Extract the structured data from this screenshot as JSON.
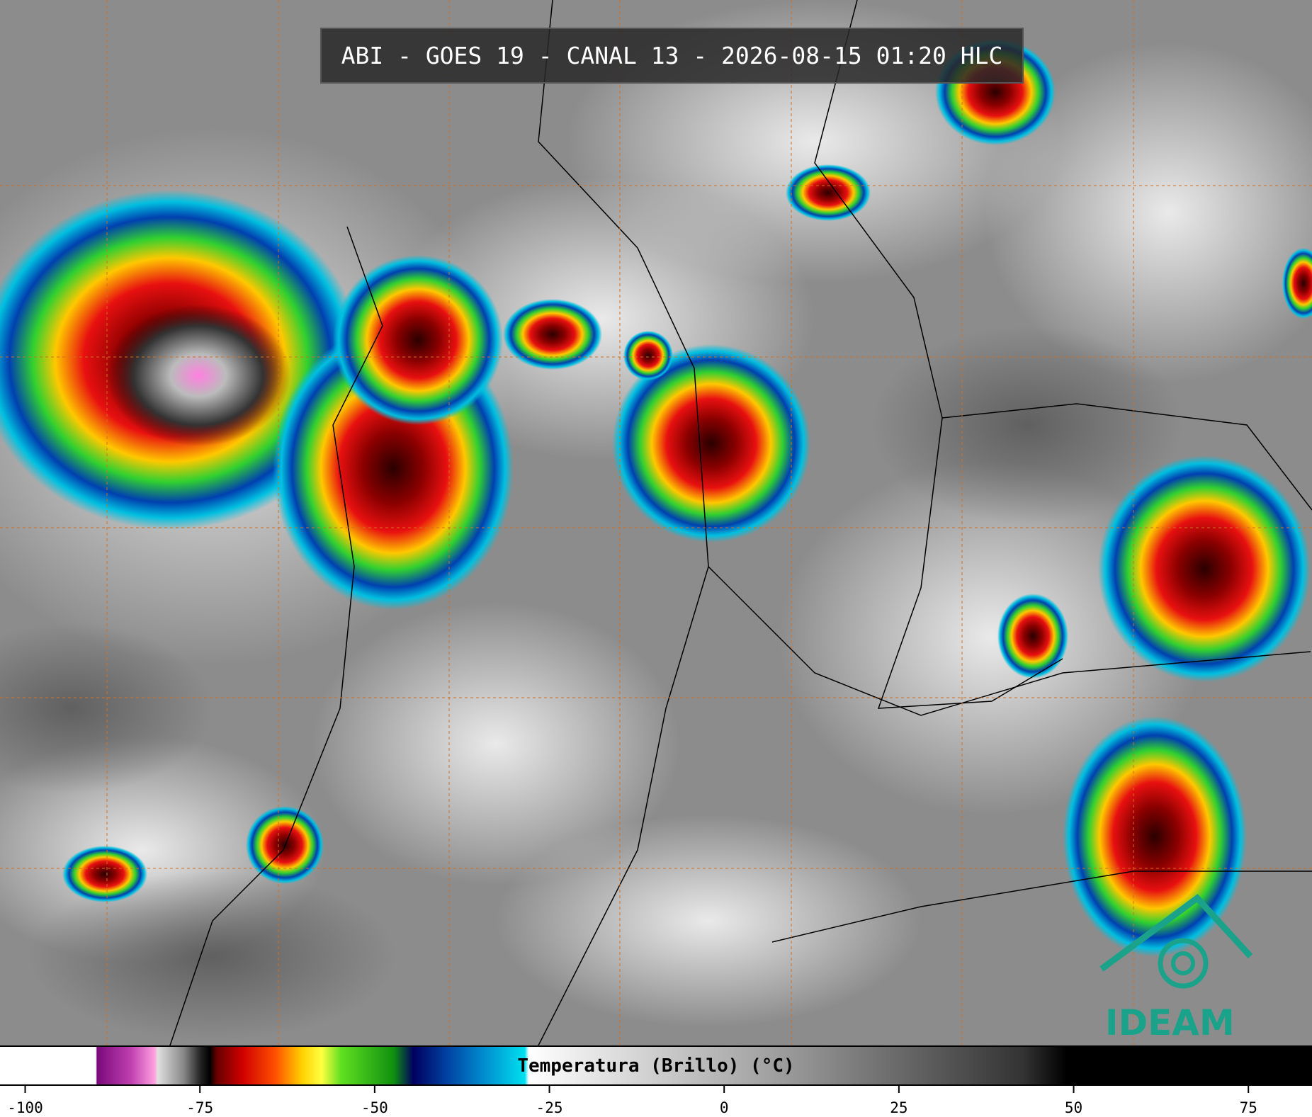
{
  "title": "ABI - GOES 19 - CANAL 13 - 2026-08-15 01:20 HLC",
  "colorbar": {
    "label": "Temperatura (Brillo) (°C)",
    "lim": [
      -103.6,
      84.1
    ],
    "ticks": [
      -100,
      -75,
      -50,
      -25,
      0,
      25,
      50,
      75
    ]
  },
  "logo": "IDEAM"
}
